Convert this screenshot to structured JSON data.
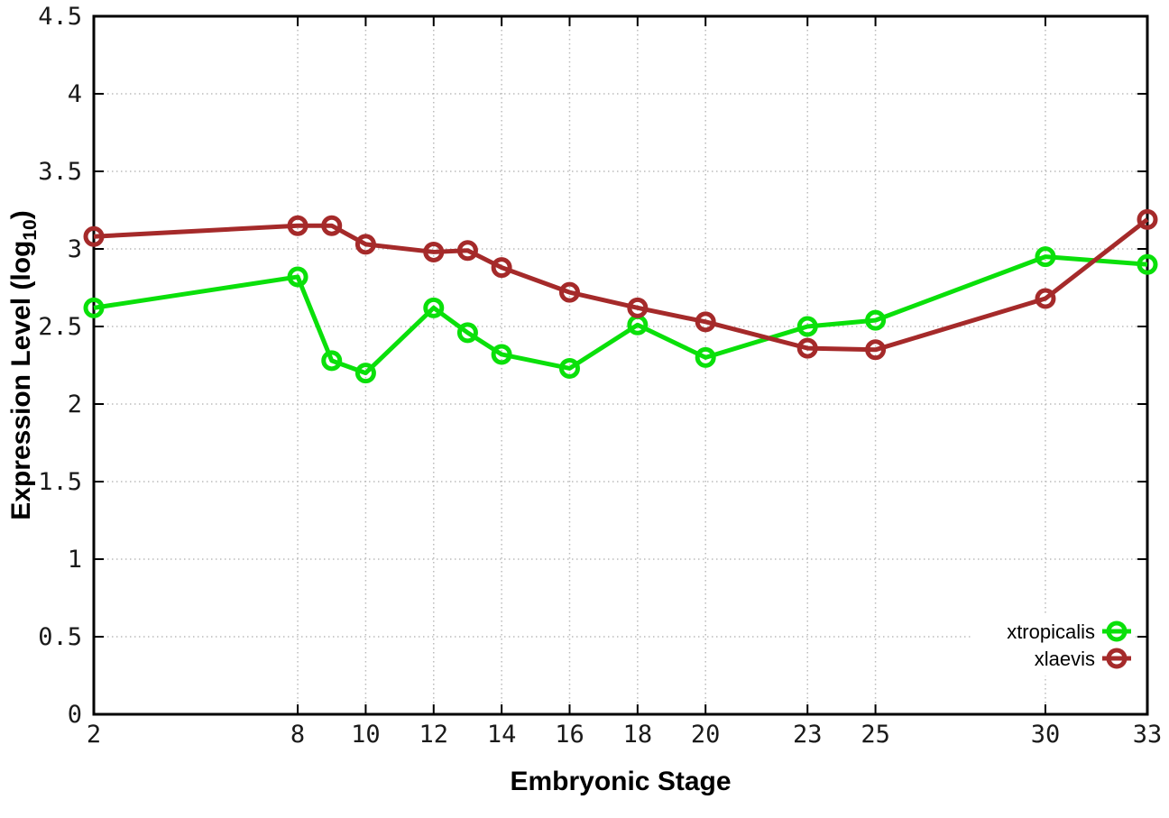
{
  "chart_data": {
    "type": "line",
    "title": "",
    "xlabel": "Embryonic Stage",
    "ylabel": "Expression Level (log10)",
    "ylabel_parts": {
      "prefix": "Expression Level (log",
      "sub": "10",
      "suffix": ")"
    },
    "xlim": [
      2,
      33
    ],
    "ylim": [
      0,
      4.5
    ],
    "x_ticks": [
      2,
      8,
      10,
      12,
      14,
      16,
      18,
      20,
      23,
      25,
      30,
      33
    ],
    "y_ticks": [
      0,
      0.5,
      1,
      1.5,
      2,
      2.5,
      3,
      3.5,
      4,
      4.5
    ],
    "grid": true,
    "legend_position": "bottom-right",
    "x": [
      2,
      8,
      9,
      10,
      12,
      13,
      14,
      16,
      18,
      20,
      23,
      25,
      30,
      33
    ],
    "series": [
      {
        "name": "xtropicalis",
        "color": "#0ae00a",
        "marker": "open-circle",
        "values": [
          2.62,
          2.82,
          2.28,
          2.2,
          2.62,
          2.46,
          2.32,
          2.23,
          2.51,
          2.3,
          2.5,
          2.54,
          2.95,
          2.9
        ]
      },
      {
        "name": "xlaevis",
        "color": "#a52a2a",
        "marker": "open-circle",
        "values": [
          3.08,
          3.15,
          3.15,
          3.03,
          2.98,
          2.99,
          2.88,
          2.72,
          2.62,
          2.53,
          2.36,
          2.35,
          2.68,
          3.19
        ]
      }
    ],
    "colors": {
      "grid": "#bbbbbb",
      "axis": "#000000",
      "tick_label": "#1a1a1a",
      "legend_text": "#000000",
      "background": "#ffffff"
    }
  }
}
